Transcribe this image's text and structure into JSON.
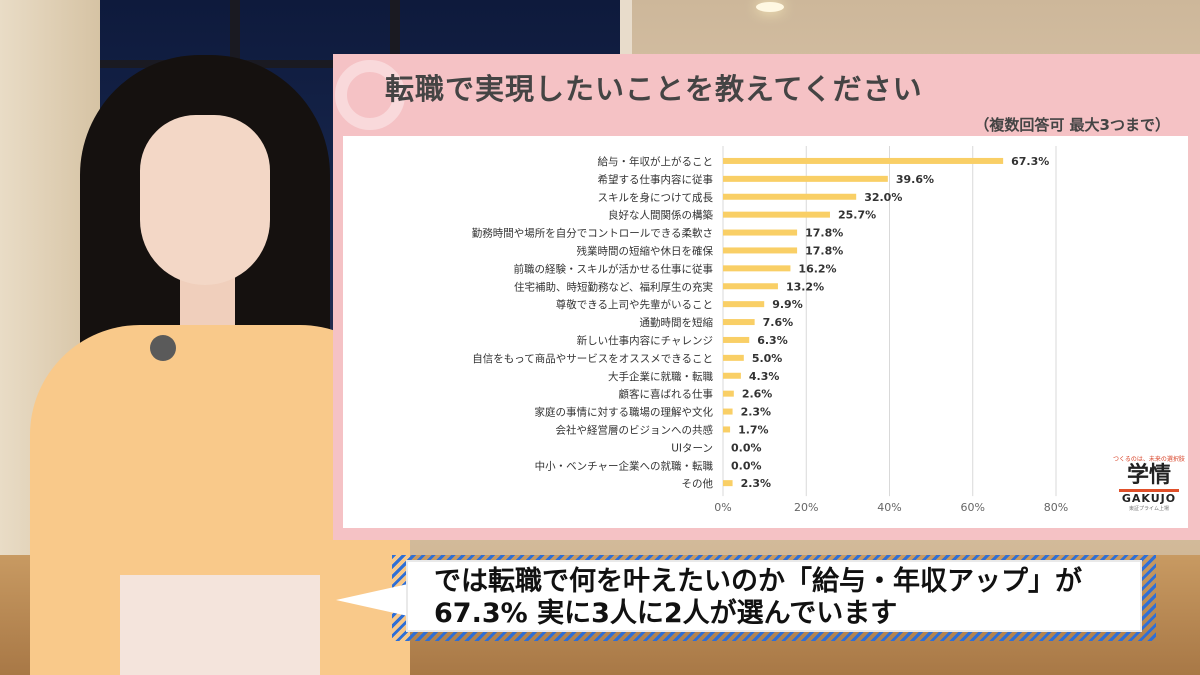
{
  "slide": {
    "title": "転職で実現したいことを教えてください",
    "note": "（複数回答可 最大3つまで）"
  },
  "logo": {
    "tagline": "つくるのは、未来の選択肢",
    "mark": "学情",
    "name": "GAKUJO",
    "sub": "東証プライム上場"
  },
  "caption": {
    "line1": "では転職で何を叶えたいのか「給与・年収アップ」が",
    "line2": "67.3% 実に3人に2人が選んでいます"
  },
  "chart_data": {
    "type": "bar",
    "orientation": "horizontal",
    "categories": [
      "給与・年収が上がること",
      "希望する仕事内容に従事",
      "スキルを身につけて成長",
      "良好な人間関係の構築",
      "勤務時間や場所を自分でコントロールできる柔軟さ",
      "残業時間の短縮や休日を確保",
      "前職の経験・スキルが活かせる仕事に従事",
      "住宅補助、時短勤務など、福利厚生の充実",
      "尊敬できる上司や先輩がいること",
      "通勤時間を短縮",
      "新しい仕事内容にチャレンジ",
      "自信をもって商品やサービスをオススメできること",
      "大手企業に就職・転職",
      "顧客に喜ばれる仕事",
      "家庭の事情に対する職場の理解や文化",
      "会社や経営層のビジョンへの共感",
      "UIターン",
      "中小・ベンチャー企業への就職・転職",
      "その他"
    ],
    "values": [
      67.3,
      39.6,
      32.0,
      25.7,
      17.8,
      17.8,
      16.2,
      13.2,
      9.9,
      7.6,
      6.3,
      5.0,
      4.3,
      2.6,
      2.3,
      1.7,
      0.0,
      0.0,
      2.3
    ],
    "value_labels": [
      "67.3%",
      "39.6%",
      "32.0%",
      "25.7%",
      "17.8%",
      "17.8%",
      "16.2%",
      "13.2%",
      "9.9%",
      "7.6%",
      "6.3%",
      "5.0%",
      "4.3%",
      "2.6%",
      "2.3%",
      "1.7%",
      "0.0%",
      "0.0%",
      "2.3%"
    ],
    "xlim": [
      0,
      80
    ],
    "xticks": [
      "0%",
      "20%",
      "40%",
      "60%",
      "80%"
    ],
    "grid": true,
    "bar_color": "#f9cf66",
    "title": "転職で実現したいことを教えてください"
  }
}
